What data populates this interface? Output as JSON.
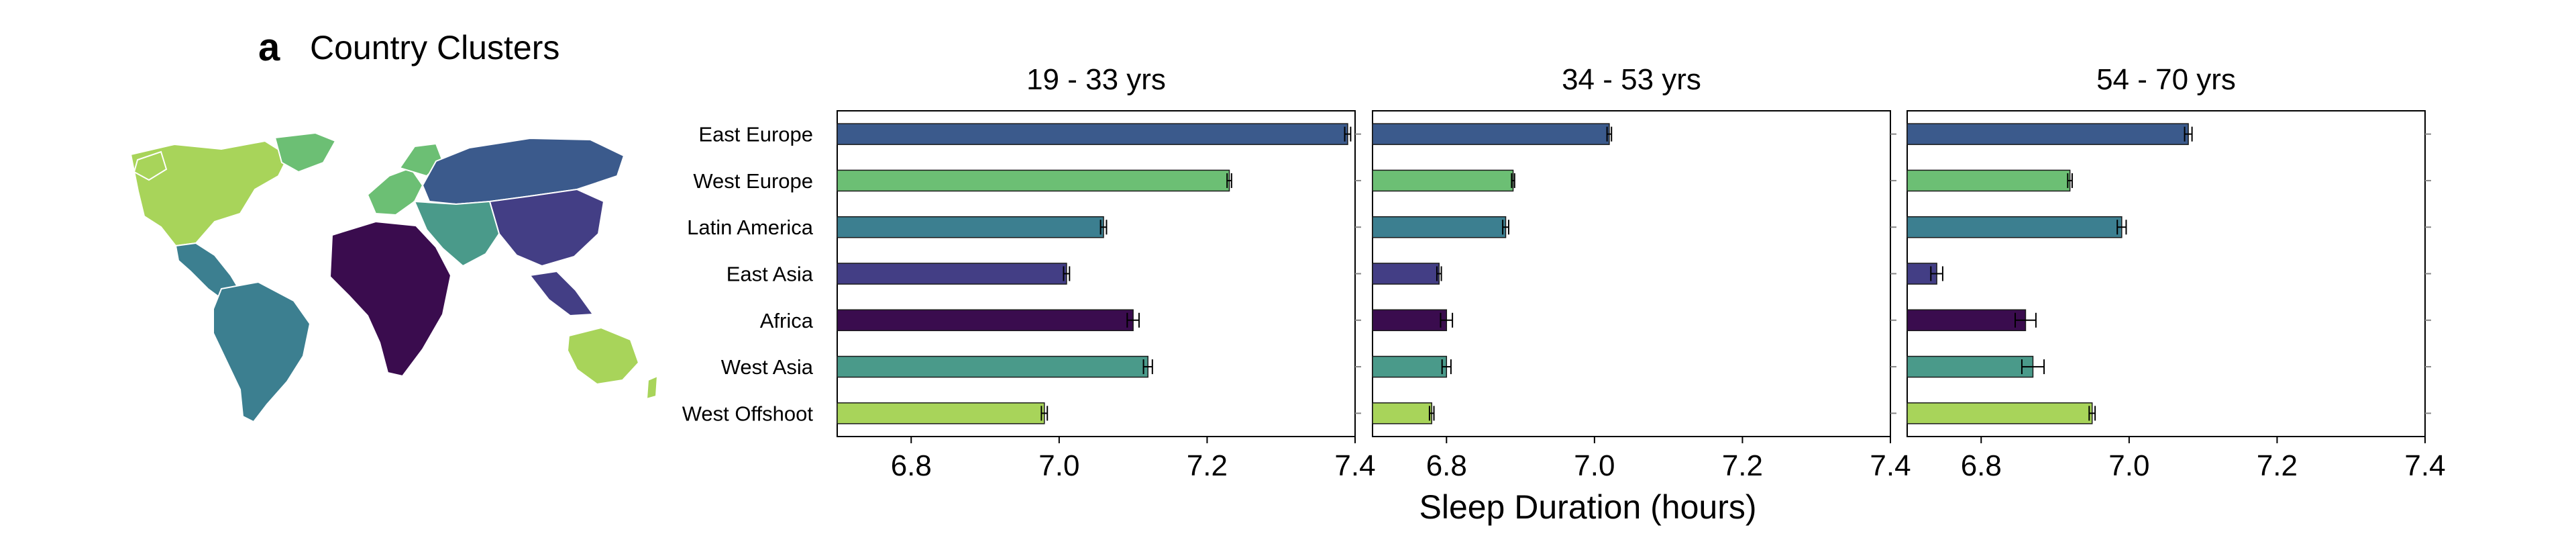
{
  "figure": {
    "panel_letter": "a",
    "panel_title": "Country Clusters",
    "map_legend_icon": "world-map-clusters-icon"
  },
  "colors": {
    "East Europe": "#3b5a8c",
    "West Europe": "#6cbf74",
    "Latin America": "#3c7f90",
    "East Asia": "#433e85",
    "Africa": "#3a0c4e",
    "West Asia": "#4a9a8a",
    "West Offshoot": "#a8d45a"
  },
  "chart_data": {
    "type": "bar",
    "orientation": "horizontal",
    "categories": [
      "East Europe",
      "West Europe",
      "Latin America",
      "East Asia",
      "Africa",
      "West Asia",
      "West Offshoot"
    ],
    "xlabel": "Sleep Duration (hours)",
    "xlim": [
      6.7,
      7.4
    ],
    "xticks": [
      "6.8",
      "7.0",
      "7.2",
      "7.4"
    ],
    "xtick_values": [
      6.8,
      7.0,
      7.2,
      7.4
    ],
    "error_bars": true,
    "facets": [
      {
        "title": "19 - 33 yrs",
        "values": [
          7.39,
          7.23,
          7.06,
          7.01,
          7.1,
          7.12,
          6.98
        ],
        "errors": [
          0.004,
          0.003,
          0.004,
          0.004,
          0.008,
          0.006,
          0.004
        ]
      },
      {
        "title": "34 - 53 yrs",
        "values": [
          7.02,
          6.89,
          6.88,
          6.79,
          6.8,
          6.8,
          6.78
        ],
        "errors": [
          0.003,
          0.002,
          0.004,
          0.003,
          0.008,
          0.006,
          0.003
        ]
      },
      {
        "title": "54 - 70 yrs",
        "values": [
          7.08,
          6.92,
          6.99,
          6.74,
          6.86,
          6.87,
          6.95
        ],
        "errors": [
          0.005,
          0.003,
          0.006,
          0.008,
          0.014,
          0.015,
          0.004
        ]
      }
    ]
  }
}
